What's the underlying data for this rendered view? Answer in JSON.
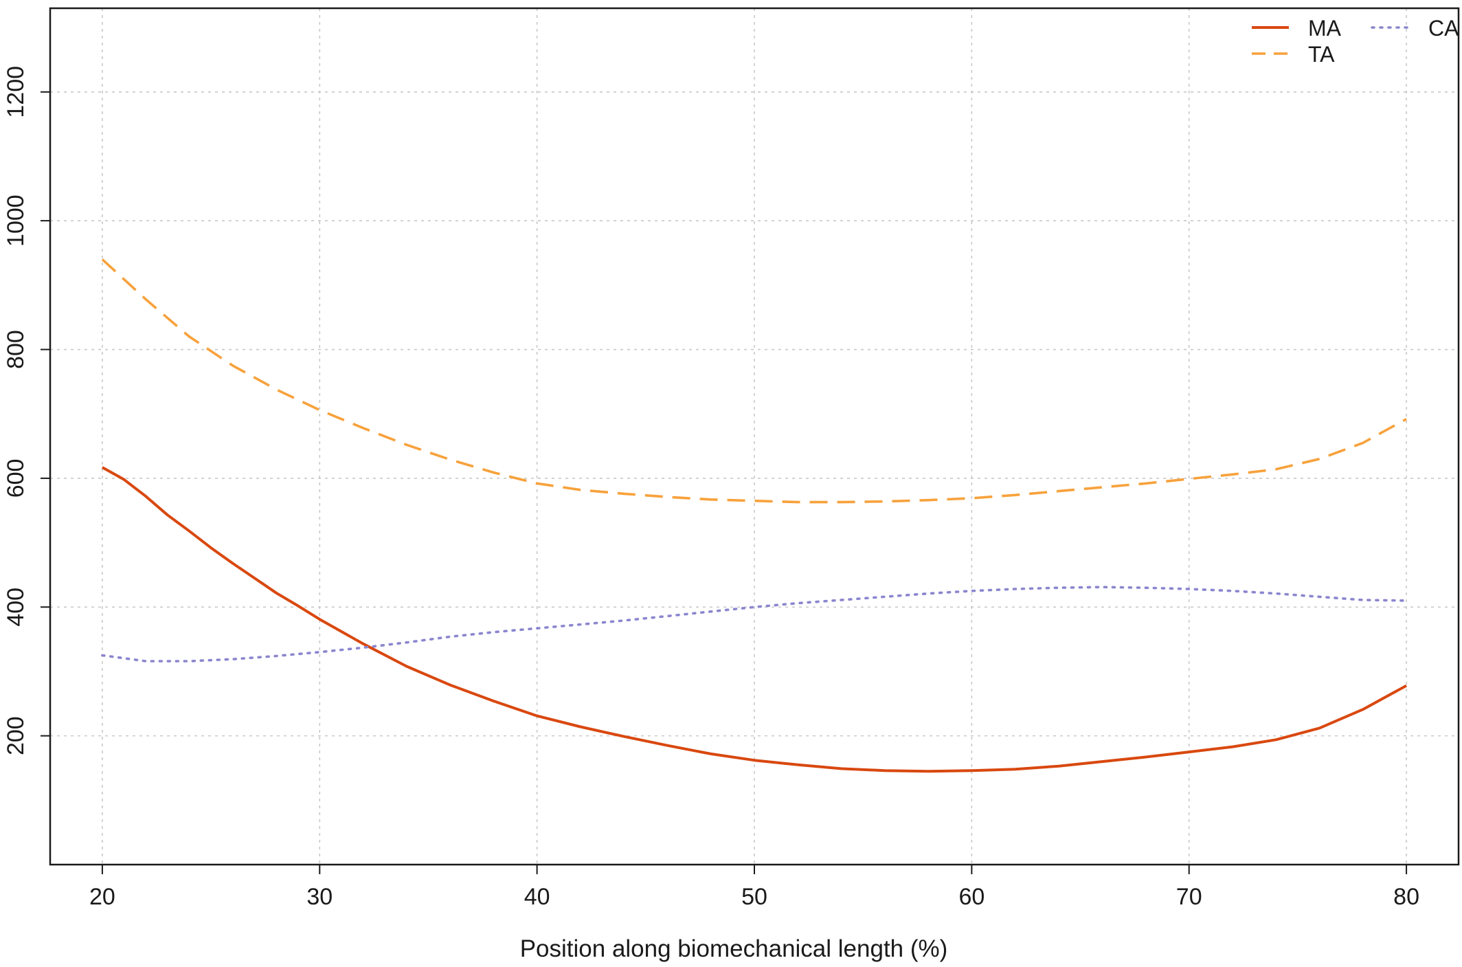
{
  "chart_data": {
    "type": "line",
    "title": "",
    "xlabel": "Position along biomechanical length (%)",
    "ylabel": "",
    "xlim": [
      17.6,
      82.4
    ],
    "ylim": [
      0,
      1330
    ],
    "x_ticks": [
      20,
      30,
      40,
      50,
      60,
      70,
      80
    ],
    "y_ticks": [
      200,
      400,
      600,
      800,
      1000,
      1200
    ],
    "grid": true,
    "legend_position": "top-right",
    "series": [
      {
        "name": "MA",
        "color": "#d9480f",
        "style": "solid",
        "x": [
          20,
          21,
          22,
          23,
          24,
          25,
          26,
          27,
          28,
          29,
          30,
          32,
          34,
          36,
          38,
          40,
          42,
          44,
          46,
          48,
          50,
          52,
          54,
          56,
          58,
          60,
          62,
          64,
          66,
          68,
          70,
          72,
          74,
          76,
          78,
          80
        ],
        "y": [
          617,
          598,
          572,
          543,
          518,
          492,
          468,
          445,
          422,
          402,
          381,
          343,
          308,
          279,
          254,
          231,
          214,
          199,
          185,
          172,
          162,
          155,
          149,
          146,
          145,
          146,
          148,
          153,
          160,
          167,
          175,
          183,
          194,
          212,
          241,
          278
        ]
      },
      {
        "name": "TA",
        "color": "#f7a13b",
        "style": "dashed",
        "x": [
          20,
          22,
          24,
          26,
          28,
          30,
          32,
          34,
          36,
          38,
          40,
          42,
          44,
          46,
          48,
          50,
          52,
          54,
          56,
          58,
          60,
          62,
          64,
          66,
          68,
          70,
          72,
          74,
          76,
          78,
          80
        ],
        "y": [
          940,
          878,
          820,
          775,
          738,
          706,
          678,
          652,
          629,
          609,
          592,
          582,
          576,
          571,
          567,
          565,
          563,
          563,
          564,
          566,
          569,
          574,
          580,
          586,
          592,
          599,
          606,
          614,
          630,
          655,
          692
        ]
      },
      {
        "name": "CA",
        "color": "#8b86cf",
        "style": "dotted",
        "x": [
          20,
          22,
          24,
          26,
          28,
          30,
          32,
          34,
          36,
          38,
          40,
          42,
          44,
          46,
          48,
          50,
          52,
          54,
          56,
          58,
          60,
          62,
          64,
          66,
          68,
          70,
          72,
          74,
          76,
          78,
          80
        ],
        "y": [
          325,
          316,
          316,
          319,
          324,
          330,
          337,
          345,
          354,
          361,
          367,
          373,
          379,
          386,
          393,
          400,
          406,
          411,
          416,
          421,
          425,
          428,
          430,
          431,
          430,
          428,
          425,
          421,
          416,
          411,
          410
        ]
      }
    ]
  }
}
